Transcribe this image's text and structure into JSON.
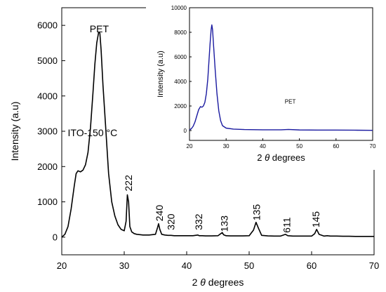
{
  "chart_data": [
    {
      "type": "line",
      "title": "",
      "xlabel": "2 θ degrees",
      "xlabel_prefix": "2 ",
      "xlabel_theta": "θ",
      "xlabel_suffix": " degrees",
      "ylabel": "Intensity (a.u)",
      "xlim": [
        20,
        70
      ],
      "ylim": [
        -500,
        6500
      ],
      "xticks": [
        20,
        30,
        40,
        50,
        60,
        70
      ],
      "yticks": [
        0,
        1000,
        2000,
        3000,
        4000,
        5000,
        6000
      ],
      "grid": false,
      "line_color": "#000000",
      "series": [
        {
          "name": "",
          "x": [
            20,
            20.5,
            21,
            21.5,
            22,
            22.3,
            22.6,
            23,
            23.4,
            23.8,
            24.2,
            24.6,
            25,
            25.3,
            25.6,
            25.9,
            26.1,
            26.3,
            26.6,
            27,
            27.5,
            28,
            28.5,
            29,
            29.5,
            30,
            30.3,
            30.5,
            30.7,
            30.9,
            31.2,
            31.6,
            32,
            33,
            34,
            35,
            35.3,
            35.5,
            35.7,
            36,
            36.5,
            37,
            37.5,
            38,
            39,
            40,
            41,
            41.8,
            42,
            42.5,
            43,
            44,
            45,
            45.7,
            45.9,
            46.3,
            47,
            48,
            49,
            50,
            50.7,
            51.1,
            51.5,
            52,
            53,
            54,
            55,
            55.8,
            56.2,
            57,
            58,
            59,
            60,
            60.5,
            60.8,
            61.2,
            62,
            62.5,
            63,
            64,
            65,
            66,
            67,
            68,
            69,
            70
          ],
          "y": [
            0,
            80,
            300,
            800,
            1450,
            1800,
            1880,
            1850,
            1900,
            2050,
            2400,
            3100,
            4100,
            4900,
            5500,
            5800,
            5780,
            5300,
            4300,
            3200,
            1800,
            1000,
            600,
            350,
            220,
            180,
            450,
            1200,
            1000,
            300,
            150,
            100,
            80,
            60,
            60,
            80,
            250,
            380,
            220,
            80,
            60,
            50,
            50,
            40,
            40,
            40,
            40,
            60,
            40,
            40,
            35,
            35,
            40,
            130,
            70,
            40,
            35,
            35,
            35,
            40,
            200,
            420,
            250,
            50,
            35,
            30,
            30,
            80,
            40,
            30,
            30,
            30,
            30,
            100,
            220,
            80,
            30,
            40,
            30,
            30,
            25,
            25,
            20,
            20,
            20,
            20
          ]
        }
      ],
      "annotations": [
        {
          "text": "PET",
          "x": 26.0,
          "y": 5800
        },
        {
          "text": "ITO-150 °C",
          "x": 28.9,
          "y": 2860
        },
        {
          "text": "222",
          "x": 30.7,
          "y": 1300
        },
        {
          "text": "240",
          "x": 35.6,
          "y": 450
        },
        {
          "text": "320",
          "x": 37.5,
          "y": 200
        },
        {
          "text": "332",
          "x": 41.9,
          "y": 200
        },
        {
          "text": "133",
          "x": 46.0,
          "y": 150
        },
        {
          "text": "135",
          "x": 51.2,
          "y": 470
        },
        {
          "text": "611",
          "x": 56.0,
          "y": 120
        },
        {
          "text": "145",
          "x": 60.7,
          "y": 270
        }
      ]
    },
    {
      "type": "line",
      "title": "",
      "xlabel": "2 θ degrees",
      "xlabel_prefix": "2 ",
      "xlabel_theta": "θ",
      "xlabel_suffix": " degrees",
      "ylabel": "Intensity (a.u)",
      "xlim": [
        20,
        70
      ],
      "ylim": [
        -800,
        10000
      ],
      "xticks": [
        20,
        30,
        40,
        50,
        60,
        70
      ],
      "yticks": [
        0,
        2000,
        4000,
        6000,
        8000,
        10000
      ],
      "grid": false,
      "line_color": "#1a1aa0",
      "series": [
        {
          "name": "PET",
          "x": [
            20,
            20.5,
            21,
            21.5,
            22,
            22.5,
            23,
            23.4,
            23.8,
            24.2,
            24.6,
            25,
            25.3,
            25.6,
            25.9,
            26.1,
            26.3,
            26.6,
            27,
            27.5,
            28,
            28.5,
            29,
            30,
            32,
            35,
            40,
            45,
            47,
            50,
            55,
            60,
            65,
            70
          ],
          "y": [
            50,
            150,
            350,
            700,
            1200,
            1700,
            1950,
            1900,
            2000,
            2300,
            3000,
            4200,
            5600,
            7000,
            8200,
            8600,
            8200,
            6800,
            5000,
            3000,
            1600,
            800,
            400,
            200,
            120,
            80,
            60,
            60,
            90,
            50,
            40,
            40,
            30,
            20
          ]
        }
      ],
      "annotations": [
        {
          "text": "PET",
          "x": 47.5,
          "y": 2200
        }
      ]
    }
  ]
}
